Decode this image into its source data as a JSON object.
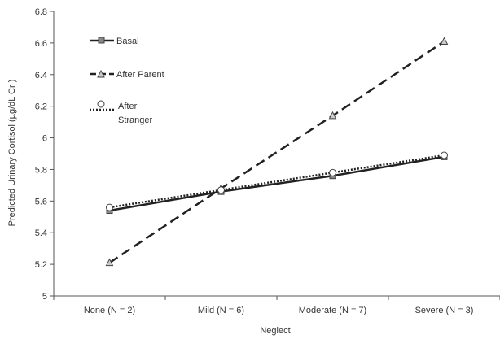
{
  "chart_data": {
    "type": "line",
    "title": "",
    "xlabel": "Neglect",
    "ylabel": "Predicted Urinary Cortisol (µg/dL Cr )",
    "categories": [
      "None (N = 2)",
      "Mild (N = 6)",
      "Moderate (N = 7)",
      "Severe (N = 3)"
    ],
    "ylim": [
      5,
      6.8
    ],
    "yticks": [
      "5",
      "5.2",
      "5.4",
      "5.6",
      "5.8",
      "6",
      "6.2",
      "6.4",
      "6.6",
      "6.8"
    ],
    "grid": false,
    "legend_position": "top-left",
    "series": [
      {
        "name": "Basal",
        "values": [
          5.54,
          5.66,
          5.76,
          5.88
        ],
        "line_style": "solid",
        "marker": "square",
        "color": "#222222"
      },
      {
        "name": "After Parent",
        "values": [
          5.21,
          5.68,
          6.14,
          6.61
        ],
        "line_style": "dashed",
        "marker": "triangle",
        "color": "#222222"
      },
      {
        "name": "After Stranger",
        "values": [
          5.56,
          5.67,
          5.78,
          5.89
        ],
        "line_style": "dotted",
        "marker": "circle",
        "color": "#222222"
      }
    ],
    "legend_labels": {
      "basal": "Basal",
      "after_parent": "After Parent",
      "after_stranger_line1": "After",
      "after_stranger_line2": "Stranger"
    }
  }
}
